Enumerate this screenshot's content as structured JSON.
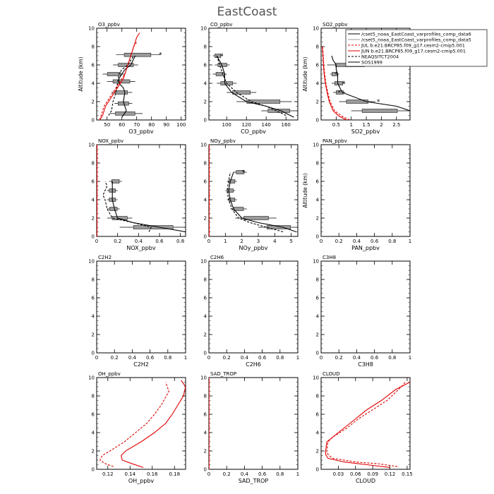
{
  "figure": {
    "title": "EastCoast"
  },
  "legend": {
    "placement": "top-right",
    "entries": [
      {
        "label": "/cset5_noaa_EastCoast_varprofiles_comp_data6",
        "color": "#000000",
        "dash": "solid"
      },
      {
        "label": "/cset5_noaa_EastCoast_varprofiles_comp_data5",
        "color": "#999999",
        "dash": "solid"
      },
      {
        "label": "JUL b.e21.BRCP85.f09_g17.cesm2-cmip5.001",
        "color": "#e00000",
        "dash": "dashed"
      },
      {
        "label": "JUN b.e21.BRCP85.f09_g17.cesm2-cmip5.001",
        "color": "#e00000",
        "dash": "solid"
      },
      {
        "label": "NEAQSITCT2004",
        "color": "#000000",
        "dash": "dashed"
      },
      {
        "label": "SOS1999",
        "color": "#000000",
        "dash": "solid"
      }
    ]
  },
  "chart_data": [
    {
      "type": "line",
      "title": "O3_ppbv",
      "xlabel": "O3_ppbv",
      "ylabel": "Altitude (km)",
      "xlim": [
        43,
        103
      ],
      "ylim": [
        0,
        10
      ],
      "xticks": [
        50,
        60,
        70,
        80,
        90,
        100
      ],
      "yticks": [
        0,
        2,
        4,
        6,
        8,
        10
      ],
      "red_dashed": {
        "x": [
          45,
          46,
          47,
          48,
          50,
          52,
          54,
          56,
          58,
          60,
          62,
          63,
          64,
          65,
          66,
          67,
          68,
          70
        ],
        "y": [
          0,
          0.5,
          1,
          1.5,
          2,
          2.5,
          3,
          3.5,
          4,
          4.5,
          5,
          5.5,
          6,
          6.5,
          7,
          7.5,
          8,
          8.5
        ]
      },
      "red_solid": {
        "x": [
          45,
          47,
          48,
          49,
          51,
          53,
          55,
          57,
          59,
          61,
          62,
          63,
          64,
          65,
          66,
          67,
          68,
          69,
          70,
          72
        ],
        "y": [
          0,
          0.5,
          1,
          1.5,
          2,
          2.5,
          3,
          3.5,
          4,
          4.5,
          5,
          5.5,
          6,
          6.5,
          7,
          7.5,
          8,
          8.5,
          9,
          9.5
        ]
      },
      "black_dashed": {
        "x": [
          51,
          53,
          54,
          56,
          57,
          58,
          60,
          64,
          68
        ],
        "y": [
          0.5,
          1,
          2,
          3,
          4,
          5,
          5.5,
          6,
          7
        ]
      },
      "black_solid": {
        "x": [
          60,
          63,
          61,
          62,
          61,
          58,
          58,
          60,
          62,
          66,
          69
        ],
        "y": [
          0.3,
          1,
          2,
          3,
          3.5,
          4,
          4.5,
          5,
          5.5,
          6,
          7
        ]
      },
      "boxes": [
        {
          "x": 61,
          "y": 0.7,
          "lo": 52,
          "hi": 74
        },
        {
          "x": 61,
          "y": 1.8,
          "lo": 55,
          "hi": 67
        },
        {
          "x": 59,
          "y": 3.0,
          "lo": 53,
          "hi": 67
        },
        {
          "x": 60,
          "y": 4.2,
          "lo": 50,
          "hi": 69
        },
        {
          "x": 55,
          "y": 5.0,
          "lo": 47,
          "hi": 62
        },
        {
          "x": 63,
          "y": 6.0,
          "lo": 54,
          "hi": 71
        },
        {
          "x": 70,
          "y": 7.1,
          "lo": 56,
          "hi": 86
        }
      ],
      "stars": [
        {
          "x": 86,
          "y": 7.1
        }
      ]
    },
    {
      "type": "line",
      "title": "CO_ppbv",
      "xlabel": "CO_ppbv",
      "ylabel": "",
      "xlim": [
        82,
        172
      ],
      "ylim": [
        0,
        10
      ],
      "xticks": [
        100,
        120,
        140,
        160
      ],
      "yticks": [
        0,
        2,
        4,
        6,
        8,
        10
      ],
      "red_dashed": null,
      "red_solid": null,
      "black_dashed": {
        "x": [
          160,
          150,
          140,
          125,
          110,
          100,
          96,
          93,
          90
        ],
        "y": [
          0.5,
          1,
          1.5,
          2,
          3,
          4,
          5,
          6,
          7
        ]
      },
      "black_solid": {
        "x": [
          168,
          155,
          140,
          120,
          105,
          98,
          98,
          95,
          90
        ],
        "y": [
          0.3,
          1,
          1.5,
          2,
          3,
          4,
          5,
          6,
          7
        ]
      },
      "boxes": [
        {
          "x": 152,
          "y": 1.0,
          "lo": 135,
          "hi": 172
        },
        {
          "x": 136,
          "y": 2.0,
          "lo": 110,
          "hi": 166
        },
        {
          "x": 115,
          "y": 3.0,
          "lo": 100,
          "hi": 130
        },
        {
          "x": 100,
          "y": 4.0,
          "lo": 90,
          "hi": 110
        },
        {
          "x": 94,
          "y": 5.0,
          "lo": 86,
          "hi": 100
        },
        {
          "x": 96,
          "y": 6.0,
          "lo": 88,
          "hi": 103
        },
        {
          "x": 91,
          "y": 7.0,
          "lo": 86,
          "hi": 96
        }
      ],
      "stars": [
        {
          "x": 95,
          "y": 7.0
        }
      ]
    },
    {
      "type": "line",
      "title": "SO2_ppbv",
      "xlabel": "SO2_ppbv",
      "ylabel": "Altitude (km)",
      "xlim": [
        0,
        2.95
      ],
      "ylim": [
        0,
        10
      ],
      "xticks": [
        0.5,
        1.0,
        1.5,
        2.0,
        2.5
      ],
      "ytick_labels_shown": true,
      "yticks": [
        0,
        2,
        4,
        6,
        8,
        10
      ],
      "red_dashed": {
        "x": [
          0.95,
          0.7,
          0.45,
          0.3,
          0.22,
          0.16,
          0.12,
          0.09,
          0.07,
          0.05
        ],
        "y": [
          0,
          0.4,
          1,
          2,
          3,
          4,
          5,
          6,
          7,
          8
        ]
      },
      "red_solid": {
        "x": [
          0.85,
          0.6,
          0.4,
          0.27,
          0.2,
          0.14,
          0.1,
          0.08,
          0.06,
          0.04
        ],
        "y": [
          0,
          0.4,
          1,
          2,
          3,
          4,
          5,
          6,
          7,
          8
        ]
      },
      "black_dashed": null,
      "black_solid": {
        "x": [
          2.95,
          2.5,
          1.5,
          0.7,
          0.55,
          0.55,
          0.5,
          0.5,
          0.4,
          0.35
        ],
        "y": [
          1,
          1.5,
          2,
          3,
          4,
          5,
          5.5,
          6,
          6.5,
          7
        ]
      },
      "boxes": [
        {
          "x": 1.9,
          "y": 1.0,
          "lo": 1.0,
          "hi": 2.95
        },
        {
          "x": 1.2,
          "y": 2.0,
          "lo": 0.6,
          "hi": 1.8
        },
        {
          "x": 0.65,
          "y": 3.0,
          "lo": 0.4,
          "hi": 0.8
        },
        {
          "x": 0.6,
          "y": 4.0,
          "lo": 0.35,
          "hi": 0.8
        },
        {
          "x": 0.45,
          "y": 5.0,
          "lo": 0.3,
          "hi": 0.6
        },
        {
          "x": 0.9,
          "y": 6.0,
          "lo": 0.2,
          "hi": 1.8
        }
      ],
      "stars": [
        {
          "x": 1.9,
          "y": 2.0
        },
        {
          "x": 0.75,
          "y": 4.0
        },
        {
          "x": 0.5,
          "y": 5.0
        },
        {
          "x": 0.6,
          "y": 3.0
        },
        {
          "x": 1.9,
          "y": 6.0
        }
      ]
    },
    {
      "type": "line",
      "title": "NOX_ppbv",
      "xlabel": "NOX_ppbv",
      "ylabel": "",
      "xlim": [
        0,
        0.85
      ],
      "ylim": [
        0,
        10
      ],
      "xticks": [
        0.0,
        0.2,
        0.4,
        0.6,
        0.8
      ],
      "yticks": [
        0,
        2,
        4,
        6,
        8,
        10
      ],
      "red_dashed": {
        "x": [
          0.004,
          0.004,
          0.004,
          0.004,
          0.004,
          0.004
        ],
        "y": [
          0,
          2,
          4,
          6,
          8,
          10
        ]
      },
      "red_solid": {
        "x": [
          0.002,
          0.002,
          0.002,
          0.002,
          0.002,
          0.002
        ],
        "y": [
          0,
          2,
          4,
          6,
          8,
          10
        ]
      },
      "black_dashed": {
        "x": [
          0.5,
          0.52,
          0.35,
          0.15,
          0.1,
          0.08,
          0.06,
          0.08,
          0.1,
          0.08
        ],
        "y": [
          0.5,
          1,
          1.5,
          2,
          3,
          4,
          4.5,
          5,
          5.5,
          6
        ]
      },
      "black_solid": {
        "x": [
          0.85,
          0.6,
          0.35,
          0.2,
          0.17,
          0.15,
          0.15,
          0.15,
          0.15
        ],
        "y": [
          0.5,
          1,
          1.5,
          2,
          3,
          4,
          5,
          5.5,
          6
        ]
      },
      "boxes": [
        {
          "x": 0.55,
          "y": 1.0,
          "lo": 0.22,
          "hi": 0.85
        },
        {
          "x": 0.22,
          "y": 2.0,
          "lo": 0.1,
          "hi": 0.34
        },
        {
          "x": 0.16,
          "y": 3.0,
          "lo": 0.1,
          "hi": 0.22
        },
        {
          "x": 0.15,
          "y": 4.0,
          "lo": 0.1,
          "hi": 0.2
        },
        {
          "x": 0.15,
          "y": 5.0,
          "lo": 0.1,
          "hi": 0.2
        },
        {
          "x": 0.18,
          "y": 6.0,
          "lo": 0.12,
          "hi": 0.24
        }
      ],
      "stars": []
    },
    {
      "type": "line",
      "title": "NOy_ppbv",
      "xlabel": "NOy_ppbv",
      "ylabel": "",
      "xlim": [
        0,
        5.4
      ],
      "ylim": [
        0,
        10
      ],
      "xticks": [
        0.0,
        1.0,
        2.0,
        3.0,
        4.0,
        5.0
      ],
      "yticks": [
        0,
        2,
        4,
        6,
        8,
        10
      ],
      "red_dashed": {
        "x": [
          0.02,
          0.02,
          0.02,
          0.02,
          0.02,
          0.02
        ],
        "y": [
          0,
          2,
          4,
          6,
          8,
          10
        ]
      },
      "red_solid": {
        "x": [
          0.01,
          0.01,
          0.01,
          0.01,
          0.01,
          0.01
        ],
        "y": [
          0,
          2,
          4,
          6,
          8,
          10
        ]
      },
      "black_dashed": {
        "x": [
          4.5,
          3.5,
          2.5,
          1.8,
          1.4,
          1.2,
          1.1,
          1.2,
          1.3
        ],
        "y": [
          0.5,
          1,
          1.5,
          2,
          3,
          4,
          5,
          6,
          7
        ]
      },
      "black_solid": {
        "x": [
          5.3,
          4.5,
          3.0,
          2.0,
          1.5,
          1.3,
          1.2,
          1.3,
          1.5
        ],
        "y": [
          0.5,
          1,
          1.5,
          2,
          3,
          4,
          5,
          6,
          7
        ]
      },
      "boxes": [
        {
          "x": 4.3,
          "y": 1.0,
          "lo": 3.0,
          "hi": 5.4
        },
        {
          "x": 2.9,
          "y": 2.0,
          "lo": 1.6,
          "hi": 4.1
        },
        {
          "x": 1.8,
          "y": 3.0,
          "lo": 1.3,
          "hi": 2.3
        },
        {
          "x": 1.4,
          "y": 4.0,
          "lo": 1.1,
          "hi": 1.7
        },
        {
          "x": 1.3,
          "y": 5.0,
          "lo": 1.0,
          "hi": 1.6
        },
        {
          "x": 1.4,
          "y": 6.0,
          "lo": 1.1,
          "hi": 1.7
        },
        {
          "x": 1.9,
          "y": 7.0,
          "lo": 1.5,
          "hi": 2.3
        }
      ],
      "stars": [
        {
          "x": 2.1,
          "y": 7.0
        }
      ]
    },
    {
      "type": "line",
      "title": "PAN_ppbv",
      "xlabel": "PAN_ppbv",
      "ylabel": "Altitude (km)",
      "xlim": [
        0,
        1
      ],
      "ylim": [
        0,
        10
      ],
      "xticks": [
        0,
        0.2,
        0.4,
        0.6,
        0.8,
        1
      ],
      "yticks": [
        0,
        2,
        4,
        6,
        8,
        10
      ],
      "red_dashed": null,
      "red_solid": null,
      "black_dashed": null,
      "black_solid": null,
      "boxes": [],
      "stars": []
    },
    {
      "type": "line",
      "title": "C2H2",
      "xlabel": "C2H2",
      "ylabel": "",
      "xlim": [
        0,
        1
      ],
      "ylim": [
        0,
        10
      ],
      "xticks": [
        0,
        0.2,
        0.4,
        0.6,
        0.8,
        1
      ],
      "yticks": [
        0,
        2,
        4,
        6,
        8,
        10
      ],
      "red_dashed": null,
      "red_solid": null,
      "black_dashed": null,
      "black_solid": null,
      "boxes": [],
      "stars": []
    },
    {
      "type": "line",
      "title": "C2H6",
      "xlabel": "C2H6",
      "ylabel": "",
      "xlim": [
        0,
        1
      ],
      "ylim": [
        0,
        10
      ],
      "xticks": [
        0,
        0.2,
        0.4,
        0.6,
        0.8,
        1
      ],
      "yticks": [
        0,
        2,
        4,
        6,
        8,
        10
      ],
      "red_dashed": null,
      "red_solid": null,
      "black_dashed": null,
      "black_solid": null,
      "boxes": [],
      "stars": []
    },
    {
      "type": "line",
      "title": "C3H8",
      "xlabel": "C3H8",
      "ylabel": "",
      "xlim": [
        0,
        1
      ],
      "ylim": [
        0,
        10
      ],
      "xticks": [
        0,
        0.2,
        0.4,
        0.6,
        0.8,
        1
      ],
      "yticks": [
        0,
        2,
        4,
        6,
        8,
        10
      ],
      "red_dashed": null,
      "red_solid": null,
      "black_dashed": null,
      "black_solid": null,
      "boxes": [],
      "stars": []
    },
    {
      "type": "line",
      "title": "OH_ppbv",
      "xlabel": "OH_ppbv",
      "ylabel": "",
      "xlim": [
        0.11,
        0.19
      ],
      "ylim": [
        0,
        10
      ],
      "xticks": [
        0.12,
        0.14,
        0.16,
        0.18
      ],
      "yticks": [
        0,
        2,
        4,
        6,
        8,
        10
      ],
      "red_dashed": {
        "x": [
          0.125,
          0.118,
          0.113,
          0.115,
          0.122,
          0.135,
          0.145,
          0.155,
          0.162,
          0.168,
          0.175,
          0.172
        ],
        "y": [
          0.3,
          0.6,
          1,
          1.5,
          2,
          3,
          4,
          5,
          6,
          7,
          8.5,
          9.5
        ]
      },
      "red_solid": {
        "x": [
          0.152,
          0.142,
          0.133,
          0.132,
          0.136,
          0.15,
          0.162,
          0.172,
          0.178,
          0.183,
          0.188,
          0.19,
          0.186
        ],
        "y": [
          0.2,
          0.6,
          1,
          1.5,
          2,
          3,
          4,
          5,
          6,
          7,
          8,
          9,
          9.7
        ]
      },
      "black_dashed": null,
      "black_solid": null,
      "boxes": [],
      "stars": []
    },
    {
      "type": "line",
      "title": "SAD_TROP",
      "xlabel": "SAD_TROP",
      "ylabel": "",
      "xlim": [
        0,
        1
      ],
      "ylim": [
        0,
        10
      ],
      "xticks": [
        0,
        0.2,
        0.4,
        0.6,
        0.8,
        1
      ],
      "yticks": [
        0,
        2,
        4,
        6,
        8,
        10
      ],
      "red_dashed": {
        "x": [
          0.002,
          0.002,
          0.002,
          0.002,
          0.002,
          0.002
        ],
        "y": [
          0,
          2,
          4,
          6,
          8,
          10
        ]
      },
      "red_solid": {
        "x": [
          0.001,
          0.001,
          0.001,
          0.001,
          0.001,
          0.001
        ],
        "y": [
          0,
          2,
          4,
          6,
          8,
          10
        ]
      },
      "black_dashed": null,
      "black_solid": null,
      "boxes": [],
      "stars": []
    },
    {
      "type": "line",
      "title": "CLOUD",
      "xlabel": "CLOUD",
      "ylabel": "",
      "xlim": [
        0,
        0.155
      ],
      "ylim": [
        0,
        10
      ],
      "xticks": [
        0.03,
        0.06,
        0.09,
        0.12,
        0.15
      ],
      "yticks": [
        0,
        2,
        4,
        6,
        8,
        10
      ],
      "red_dashed": {
        "x": [
          0.133,
          0.1,
          0.06,
          0.02,
          0.012,
          0.01,
          0.012,
          0.02,
          0.045,
          0.065,
          0.09,
          0.115,
          0.14,
          0.148
        ],
        "y": [
          0.3,
          0.6,
          0.8,
          1.2,
          1.6,
          2,
          3,
          3.5,
          4.5,
          5.5,
          6.5,
          7.5,
          9,
          9.6
        ]
      },
      "red_solid": {
        "x": [
          0.12,
          0.08,
          0.04,
          0.012,
          0.008,
          0.008,
          0.01,
          0.02,
          0.04,
          0.06,
          0.08,
          0.105,
          0.13,
          0.155
        ],
        "y": [
          0.2,
          0.5,
          0.8,
          1.2,
          1.6,
          2,
          3,
          3.5,
          4.5,
          5.5,
          6.5,
          7.5,
          8.7,
          9.5
        ]
      },
      "black_dashed": null,
      "black_solid": null,
      "boxes": [],
      "stars": []
    }
  ]
}
